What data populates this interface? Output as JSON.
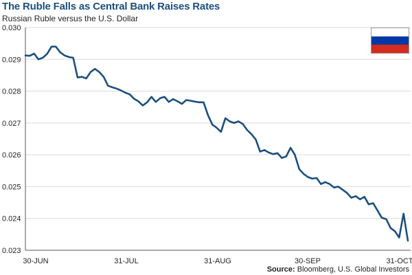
{
  "header": {
    "title": "The Ruble Falls as Central Bank Raises Rates",
    "subtitle": "Russian Ruble versus the U.S. Dollar"
  },
  "flag": {
    "icon": "russia-flag-icon",
    "colors": [
      "#ffffff",
      "#0039a6",
      "#d52b1e"
    ]
  },
  "footer": {
    "source_label": "Source:",
    "source_text": "Bloomberg, U.S. Global Investors"
  },
  "chart_data": {
    "type": "line",
    "title": "The Ruble Falls as Central Bank Raises Rates",
    "subtitle": "Russian Ruble versus the U.S. Dollar",
    "xlabel": "",
    "ylabel": "",
    "x_tick_labels": [
      "30-JUN",
      "31-JUL",
      "31-AUG",
      "30-SEP",
      "31-OCT"
    ],
    "y_ticks": [
      0.023,
      0.024,
      0.025,
      0.026,
      0.027,
      0.028,
      0.029,
      0.03
    ],
    "ylim": [
      0.023,
      0.03
    ],
    "grid": "horizontal",
    "line_color": "#1b4f7e",
    "series": [
      {
        "values": [
          0.02912,
          0.02911,
          0.02918,
          0.029,
          0.02905,
          0.02917,
          0.0294,
          0.0294,
          0.02922,
          0.02912,
          0.02907,
          0.02905,
          0.02843,
          0.02845,
          0.0284,
          0.0286,
          0.0287,
          0.0286,
          0.02845,
          0.02817,
          0.02812,
          0.02808,
          0.02802,
          0.02795,
          0.0279,
          0.02776,
          0.02768,
          0.02755,
          0.02765,
          0.02782,
          0.02766,
          0.02778,
          0.02782,
          0.02766,
          0.02775,
          0.02768,
          0.0276,
          0.02772,
          0.0277,
          0.02767,
          0.02765,
          0.02765,
          0.02725,
          0.02695,
          0.02685,
          0.02672,
          0.02715,
          0.02705,
          0.027,
          0.02705,
          0.02697,
          0.02678,
          0.02665,
          0.02648,
          0.0261,
          0.02615,
          0.02607,
          0.02602,
          0.02605,
          0.0259,
          0.02595,
          0.02622,
          0.026,
          0.02555,
          0.0254,
          0.0253,
          0.02525,
          0.02527,
          0.02508,
          0.02514,
          0.02508,
          0.02497,
          0.025,
          0.0249,
          0.0248,
          0.02465,
          0.0247,
          0.0246,
          0.02468,
          0.02444,
          0.02448,
          0.02425,
          0.02402,
          0.02398,
          0.0237,
          0.0236,
          0.0234,
          0.02415,
          0.0233
        ]
      }
    ]
  }
}
